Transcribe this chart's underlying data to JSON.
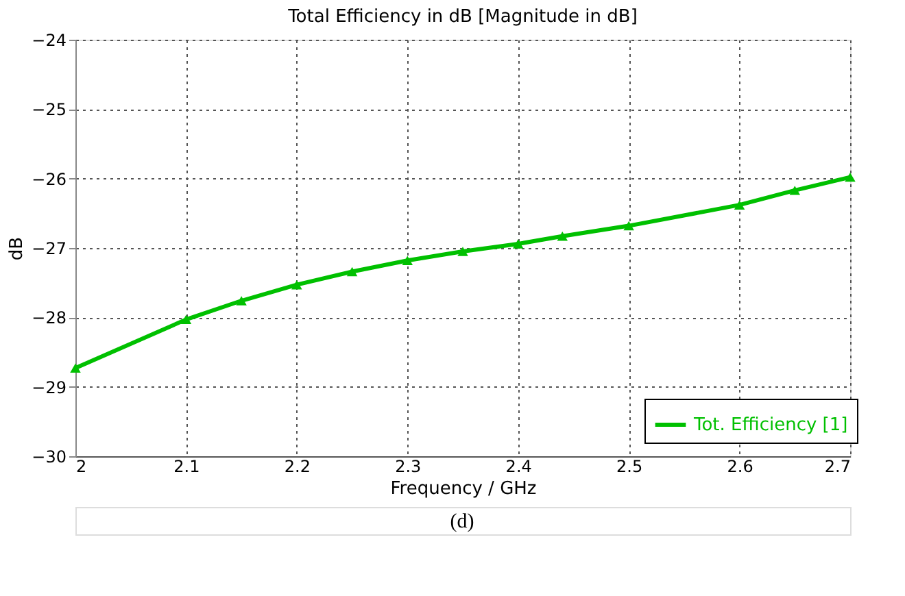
{
  "chart_data": {
    "type": "line",
    "title": "Total Efficiency in dB [Magnitude in dB]",
    "xlabel": "Frequency / GHz",
    "ylabel": "dB",
    "x": [
      2.0,
      2.1,
      2.15,
      2.2,
      2.25,
      2.3,
      2.35,
      2.4,
      2.44,
      2.5,
      2.6,
      2.65,
      2.7
    ],
    "series": [
      {
        "name": "Tot. Efficiency [1]",
        "color": "#00c000",
        "values": [
          -28.73,
          -28.03,
          -27.76,
          -27.53,
          -27.34,
          -27.18,
          -27.05,
          -26.94,
          -26.83,
          -26.68,
          -26.38,
          -26.17,
          -25.98
        ]
      }
    ],
    "xlim": [
      2,
      2.7
    ],
    "xticks": [
      2,
      2.1,
      2.2,
      2.3,
      2.4,
      2.5,
      2.6,
      2.7
    ],
    "ylim": [
      -30,
      -24
    ],
    "yticks": [
      -30,
      -29,
      -28,
      -27,
      -26,
      -25,
      -24
    ],
    "grid": true,
    "legend": "bottom right",
    "marker": "triangle",
    "line_style": "solid",
    "annotations": [
      "(d)"
    ]
  }
}
